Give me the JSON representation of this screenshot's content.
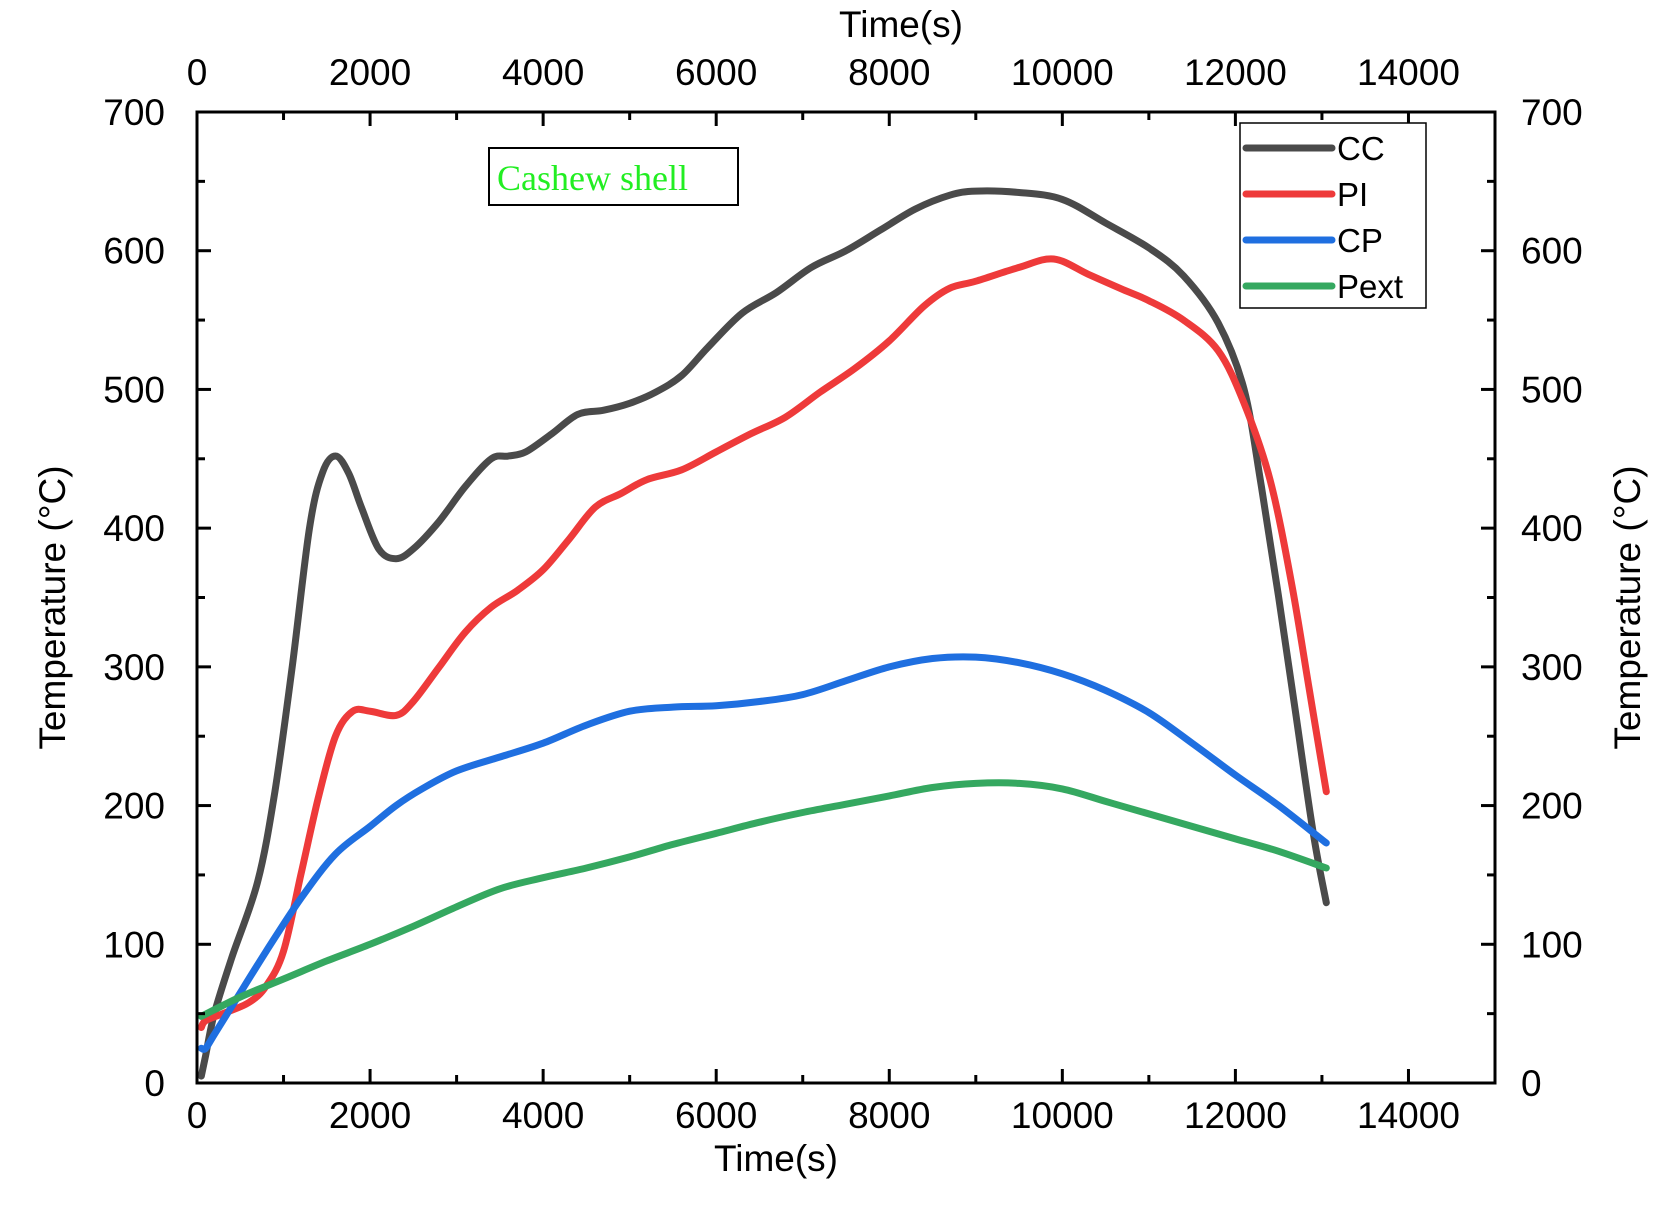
{
  "chart_data": {
    "type": "line",
    "xlabel": "Time(s)",
    "xlabel_top": "Time(s)",
    "ylabel": "Temperature (°C)",
    "ylabel_right": "Temperature (°C)",
    "xlim": [
      0,
      15000
    ],
    "ylim": [
      0,
      700
    ],
    "xticks": [
      0,
      2000,
      4000,
      6000,
      8000,
      10000,
      12000,
      14000
    ],
    "yticks": [
      0,
      100,
      200,
      300,
      400,
      500,
      600,
      700
    ],
    "grid": false,
    "legend_position": "top-right",
    "annotation": {
      "text": "Cashew shell",
      "color": "#22ee22"
    },
    "series": [
      {
        "name": "CC",
        "color": "#4a4a4a",
        "x": [
          50,
          100,
          200,
          400,
          700,
          900,
          1100,
          1300,
          1450,
          1600,
          1750,
          1900,
          2100,
          2300,
          2500,
          2800,
          3100,
          3400,
          3600,
          3800,
          4100,
          4400,
          4700,
          5000,
          5300,
          5600,
          5900,
          6300,
          6700,
          7100,
          7500,
          7900,
          8300,
          8700,
          9000,
          9500,
          10000,
          10500,
          11000,
          11400,
          11800,
          12100,
          12300,
          12500,
          12700,
          12900,
          13050
        ],
        "y": [
          5,
          20,
          50,
          90,
          145,
          210,
          300,
          400,
          440,
          452,
          440,
          415,
          385,
          378,
          385,
          405,
          430,
          450,
          452,
          455,
          468,
          482,
          485,
          490,
          498,
          510,
          530,
          555,
          570,
          588,
          600,
          615,
          630,
          640,
          643,
          642,
          637,
          620,
          602,
          582,
          548,
          500,
          430,
          350,
          265,
          180,
          130
        ]
      },
      {
        "name": "PI",
        "color": "#ee3a3a",
        "x": [
          50,
          100,
          300,
          600,
          800,
          1000,
          1200,
          1400,
          1600,
          1800,
          2000,
          2300,
          2500,
          2800,
          3100,
          3400,
          3700,
          4000,
          4300,
          4600,
          4900,
          5200,
          5600,
          6000,
          6400,
          6800,
          7200,
          7600,
          8000,
          8400,
          8700,
          9000,
          9500,
          9900,
          10300,
          10700,
          11000,
          11400,
          11800,
          12100,
          12400,
          12650,
          12850,
          13050
        ],
        "y": [
          40,
          45,
          50,
          58,
          70,
          95,
          150,
          205,
          250,
          268,
          268,
          265,
          275,
          300,
          325,
          343,
          355,
          370,
          392,
          415,
          425,
          435,
          442,
          455,
          468,
          480,
          498,
          515,
          535,
          560,
          573,
          578,
          588,
          594,
          583,
          572,
          564,
          550,
          528,
          490,
          435,
          360,
          285,
          210
        ]
      },
      {
        "name": "CP",
        "color": "#1f6fe0",
        "x": [
          50,
          100,
          200,
          400,
          800,
          1200,
          1600,
          2000,
          2300,
          2600,
          3000,
          3500,
          4000,
          4500,
          5000,
          5500,
          6000,
          6500,
          7000,
          7500,
          8000,
          8500,
          9000,
          9500,
          10000,
          10500,
          11000,
          11500,
          12000,
          12500,
          13050
        ],
        "y": [
          25,
          25,
          35,
          55,
          95,
          133,
          165,
          185,
          200,
          212,
          225,
          235,
          245,
          258,
          268,
          271,
          272,
          275,
          280,
          290,
          300,
          306,
          307,
          303,
          295,
          283,
          267,
          245,
          222,
          200,
          173
        ]
      },
      {
        "name": "Pext",
        "color": "#35a860",
        "x": [
          50,
          500,
          1000,
          1500,
          2000,
          2500,
          3000,
          3500,
          4000,
          4500,
          5000,
          5500,
          6000,
          6500,
          7000,
          7500,
          8000,
          8500,
          9000,
          9500,
          10000,
          10500,
          11000,
          11500,
          12000,
          12500,
          13050
        ],
        "y": [
          48,
          62,
          75,
          88,
          100,
          113,
          127,
          140,
          148,
          155,
          163,
          172,
          180,
          188,
          195,
          201,
          207,
          213,
          216,
          216,
          212,
          203,
          194,
          185,
          176,
          167,
          155
        ]
      }
    ]
  }
}
